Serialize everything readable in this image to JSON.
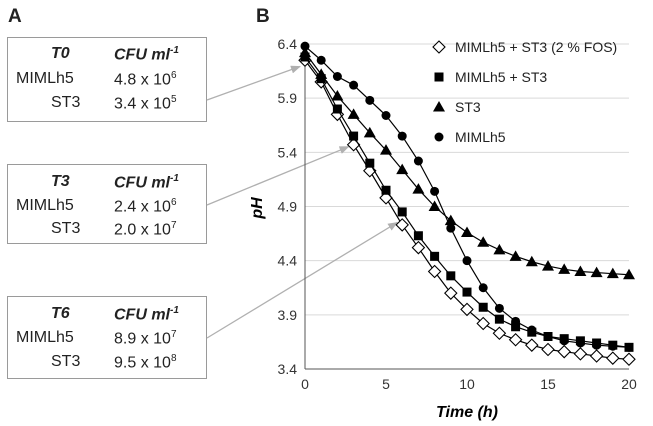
{
  "panels": {
    "a": "A",
    "b": "B"
  },
  "boxes": [
    {
      "time": "T0",
      "unit": "CFU ml",
      "unit_sup": "-1",
      "rows": [
        {
          "strain": "MIMLh5",
          "mant": "4.8 x 10",
          "exp": "6"
        },
        {
          "strain": "ST3",
          "mant": "3.4 x 10",
          "exp": "5"
        }
      ]
    },
    {
      "time": "T3",
      "unit": "CFU ml",
      "unit_sup": "-1",
      "rows": [
        {
          "strain": "MIMLh5",
          "mant": "2.4 x 10",
          "exp": "6"
        },
        {
          "strain": "ST3",
          "mant": "2.0 x 10",
          "exp": "7"
        }
      ]
    },
    {
      "time": "T6",
      "unit": "CFU ml",
      "unit_sup": "-1",
      "rows": [
        {
          "strain": "MIMLh5",
          "mant": "8.9 x 10",
          "exp": "7"
        },
        {
          "strain": "ST3",
          "mant": "9.5 x 10",
          "exp": "8"
        }
      ]
    }
  ],
  "chart_data": {
    "type": "line",
    "xlabel": "Time (h)",
    "ylabel": "pH",
    "xlim": [
      0,
      20
    ],
    "ylim": [
      3.4,
      6.4
    ],
    "xticks": [
      "0",
      "5",
      "10",
      "15",
      "20"
    ],
    "yticks": [
      "3.4",
      "3.9",
      "4.4",
      "4.9",
      "5.4",
      "5.9",
      "6.4"
    ],
    "legend_position": "top-right",
    "grid": "horizontal",
    "series": [
      {
        "name": "MIMLh5 + ST3 (2 % FOS)",
        "marker": "diamond-open",
        "x": [
          0,
          1,
          2,
          3,
          4,
          5,
          6,
          7,
          8,
          9,
          10,
          11,
          12,
          13,
          14,
          15,
          16,
          17,
          18,
          19,
          20
        ],
        "values": [
          6.25,
          6.05,
          5.75,
          5.47,
          5.23,
          4.98,
          4.73,
          4.52,
          4.3,
          4.1,
          3.95,
          3.82,
          3.73,
          3.67,
          3.62,
          3.58,
          3.56,
          3.54,
          3.52,
          3.5,
          3.49
        ]
      },
      {
        "name": "MIMLh5 + ST3",
        "marker": "square",
        "x": [
          0,
          1,
          2,
          3,
          4,
          5,
          6,
          7,
          8,
          9,
          10,
          11,
          12,
          13,
          14,
          15,
          16,
          17,
          18,
          19,
          20
        ],
        "values": [
          6.28,
          6.08,
          5.8,
          5.55,
          5.3,
          5.05,
          4.85,
          4.63,
          4.44,
          4.26,
          4.11,
          3.97,
          3.86,
          3.79,
          3.74,
          3.7,
          3.68,
          3.66,
          3.64,
          3.62,
          3.6
        ]
      },
      {
        "name": "ST3",
        "marker": "triangle",
        "x": [
          0,
          1,
          2,
          3,
          4,
          5,
          6,
          7,
          8,
          9,
          10,
          11,
          12,
          13,
          14,
          15,
          16,
          17,
          18,
          19,
          20
        ],
        "values": [
          6.32,
          6.12,
          5.92,
          5.75,
          5.58,
          5.42,
          5.24,
          5.06,
          4.9,
          4.77,
          4.66,
          4.57,
          4.5,
          4.44,
          4.39,
          4.35,
          4.32,
          4.3,
          4.29,
          4.28,
          4.27
        ]
      },
      {
        "name": "MIMLh5",
        "marker": "circle",
        "x": [
          0,
          1,
          2,
          3,
          4,
          5,
          6,
          7,
          8,
          9,
          10,
          11,
          12,
          13,
          14,
          15,
          16,
          17,
          18,
          19,
          20
        ],
        "values": [
          6.38,
          6.25,
          6.1,
          6.02,
          5.88,
          5.74,
          5.55,
          5.32,
          5.04,
          4.7,
          4.4,
          4.15,
          3.96,
          3.84,
          3.76,
          3.7,
          3.66,
          3.64,
          3.62,
          3.61,
          3.6
        ]
      }
    ]
  }
}
